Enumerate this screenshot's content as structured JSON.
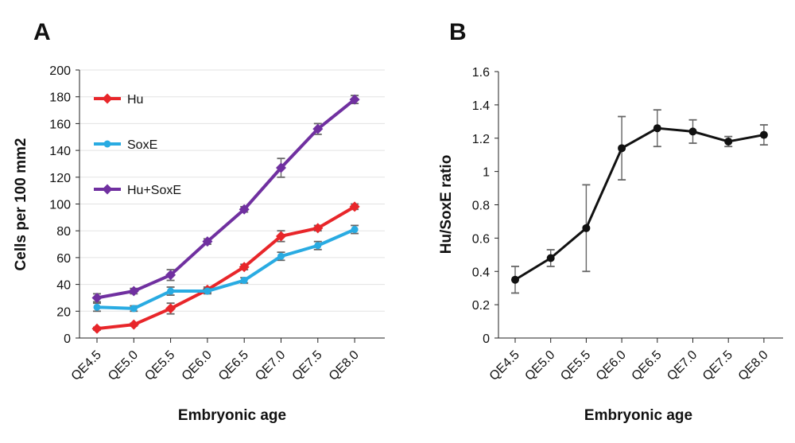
{
  "panels": [
    {
      "panel_label": "A",
      "ylabel": "Cells per 100 mm2",
      "xlabel": "Embryonic age"
    },
    {
      "panel_label": "B",
      "ylabel": "Hu/SoxE ratio",
      "xlabel": "Embryonic age"
    }
  ],
  "chart_data": [
    {
      "type": "line",
      "title": "A",
      "xlabel": "Embryonic age",
      "ylabel": "Cells per 100 mm2",
      "categories": [
        "QE4.5",
        "QE5.0",
        "QE5.5",
        "QE6.0",
        "QE6.5",
        "QE7.0",
        "QE7.5",
        "QE8.0"
      ],
      "ylim": [
        0,
        200
      ],
      "yticks": [
        0,
        20,
        40,
        60,
        80,
        100,
        120,
        140,
        160,
        180,
        200
      ],
      "grid": true,
      "legend_position": "top-left",
      "series": [
        {
          "name": "Hu",
          "color": "#e8262a",
          "marker": "diamond",
          "values": [
            7,
            10,
            22,
            36,
            53,
            76,
            82,
            98
          ],
          "errors": [
            1,
            1,
            4,
            2,
            2,
            4,
            2,
            2
          ]
        },
        {
          "name": "SoxE",
          "color": "#29abe2",
          "marker": "circle",
          "values": [
            23,
            22,
            35,
            35,
            43,
            61,
            69,
            81
          ],
          "errors": [
            3,
            2,
            3,
            2,
            2,
            3,
            3,
            3
          ]
        },
        {
          "name": "Hu+SoxE",
          "color": "#7030a0",
          "marker": "diamond",
          "values": [
            30,
            35,
            47,
            72,
            96,
            127,
            156,
            178
          ],
          "errors": [
            3,
            2,
            4,
            2,
            2,
            7,
            4,
            3
          ]
        }
      ]
    },
    {
      "type": "line",
      "title": "B",
      "xlabel": "Embryonic age",
      "ylabel": "Hu/SoxE ratio",
      "categories": [
        "QE4.5",
        "QE5.0",
        "QE5.5",
        "QE6.0",
        "QE6.5",
        "QE7.0",
        "QE7.5",
        "QE8.0"
      ],
      "ylim": [
        0,
        1.6
      ],
      "yticks": [
        "0",
        "0.2",
        "0.4",
        "0.6",
        "0.8",
        "1",
        "1.2",
        "1.4",
        "1.6"
      ],
      "grid": false,
      "series": [
        {
          "name": "Hu/SoxE ratio",
          "color": "#111111",
          "marker": "circle",
          "values": [
            0.35,
            0.48,
            0.66,
            1.14,
            1.26,
            1.24,
            1.18,
            1.22
          ],
          "errors": [
            0.08,
            0.05,
            0.26,
            0.19,
            0.11,
            0.07,
            0.03,
            0.06
          ]
        }
      ]
    }
  ]
}
